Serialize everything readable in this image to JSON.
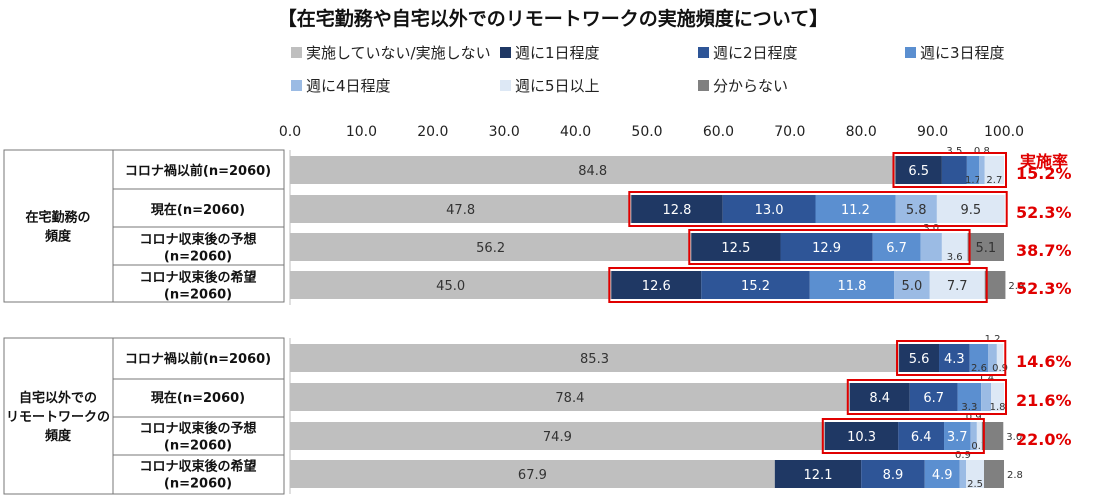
{
  "chart_data": {
    "type": "bar",
    "orientation": "horizontal",
    "stacked": true,
    "title": "【在宅勤務や自宅以外でのリモートワークの実施頻度について】",
    "xlim": [
      0,
      100
    ],
    "x_ticks": [
      "0.0",
      "10.0",
      "20.0",
      "30.0",
      "40.0",
      "50.0",
      "60.0",
      "70.0",
      "80.0",
      "90.0",
      "100.0"
    ],
    "legend_position": "top",
    "legend": [
      "実施していない/実施しない",
      "週に1日程度",
      "週に2日程度",
      "週に3日程度",
      "週に4日程度",
      "週に5日以上",
      "分からない"
    ],
    "colors": [
      "#bfbfbf",
      "#1f3864",
      "#2e5597",
      "#5b8fd0",
      "#9bbbe4",
      "#dde8f5",
      "#808080"
    ],
    "rate_header": "実施率",
    "groups": [
      {
        "label": "在宅勤務の\n頻度",
        "rows": [
          {
            "label": "コロナ禍以前(n=2060)",
            "values": [
              84.8,
              6.5,
              3.5,
              1.7,
              0.8,
              2.7,
              0.0
            ],
            "rate": "15.2%"
          },
          {
            "label": "現在(n=2060)",
            "values": [
              47.8,
              12.8,
              13.0,
              11.2,
              5.8,
              9.5,
              0.0
            ],
            "rate": "52.3%"
          },
          {
            "label": "コロナ収束後の予想\n(n=2060)",
            "values": [
              56.2,
              12.5,
              12.9,
              6.7,
              3.0,
              3.6,
              5.1
            ],
            "rate": "38.7%"
          },
          {
            "label": "コロナ収束後の希望\n(n=2060)",
            "values": [
              45.0,
              12.6,
              15.2,
              11.8,
              5.0,
              7.7,
              2.9
            ],
            "rate": "52.3%"
          }
        ]
      },
      {
        "label": "自宅以外での\nリモートワークの\n頻度",
        "rows": [
          {
            "label": "コロナ禍以前(n=2060)",
            "values": [
              85.3,
              5.6,
              4.3,
              2.6,
              1.2,
              0.9,
              0.0
            ],
            "rate": "14.6%"
          },
          {
            "label": "現在(n=2060)",
            "values": [
              78.4,
              8.4,
              6.7,
              3.3,
              1.4,
              1.8,
              0.0
            ],
            "rate": "21.6%"
          },
          {
            "label": "コロナ収束後の予想\n(n=2060)",
            "values": [
              74.9,
              10.3,
              6.4,
              3.7,
              0.9,
              0.7,
              3.0
            ],
            "rate": "22.0%"
          },
          {
            "label": "コロナ収束後の希望\n(n=2060)",
            "values": [
              67.9,
              12.1,
              8.9,
              4.9,
              0.9,
              2.5,
              2.8
            ],
            "rate": ""
          }
        ]
      }
    ]
  }
}
